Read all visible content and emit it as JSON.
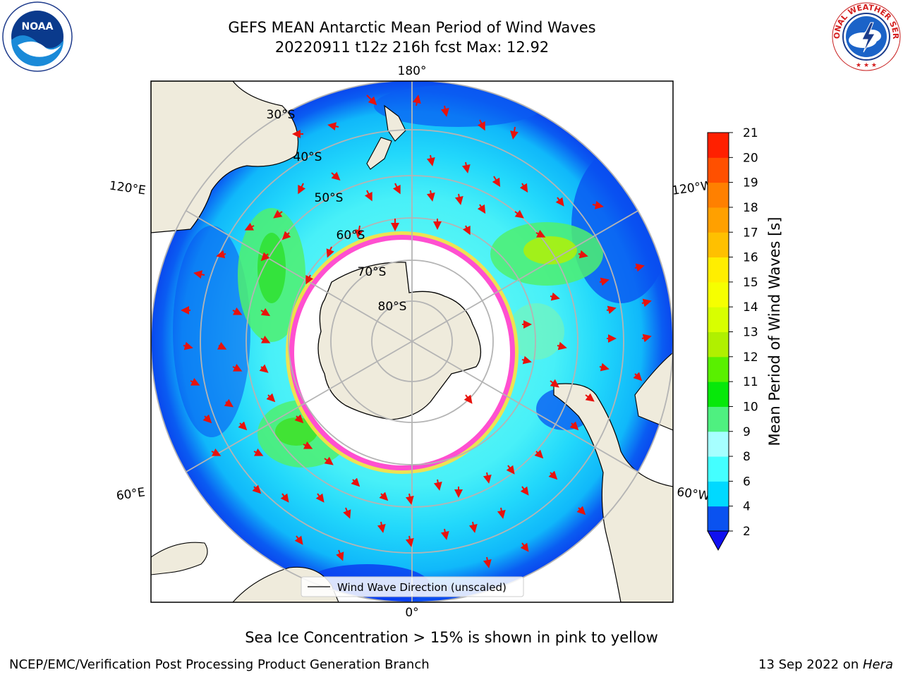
{
  "title": {
    "line1": "GEFS MEAN Antarctic Mean Period of Wind Waves",
    "line2": "20220911 t12z 216h fcst   Max: 12.92"
  },
  "map": {
    "projection": "south-polar-stereographic",
    "longitude_labels": {
      "top": "180°",
      "upper_left": "120°E",
      "upper_right": "120°W",
      "lower_left": "60°E",
      "lower_right": "60°W",
      "bottom": "0°"
    },
    "latitude_labels": [
      "30°S",
      "40°S",
      "50°S",
      "60°S",
      "70°S",
      "80°S"
    ],
    "legend_label": "Wind Wave Direction (unscaled)",
    "colors": {
      "land": "#efebdc",
      "ocean_low": "#0a52f0",
      "ocean_mid": "#31dcf7",
      "ocean_high": "#4ff060",
      "sea_ice": "#ff4fd0",
      "arrow": "#e8120c"
    }
  },
  "colorbar": {
    "label": "Mean Period of Wind Waves [s]",
    "ticks": [
      "2",
      "4",
      "6",
      "8",
      "9",
      "10",
      "11",
      "12",
      "13",
      "14",
      "15",
      "16",
      "17",
      "18",
      "19",
      "20",
      "21"
    ],
    "colors": [
      "#0a52f0",
      "#00d9ff",
      "#44ffff",
      "#a6ffff",
      "#4ff080",
      "#07e80a",
      "#59f000",
      "#b0f000",
      "#d8ff00",
      "#f6ff00",
      "#ffee00",
      "#ffc000",
      "#ffa000",
      "#ff8000",
      "#ff5000",
      "#ff2000"
    ],
    "under_color": "#1010f0"
  },
  "note": "Sea Ice Concentration > 15% is shown in pink to yellow",
  "footer": {
    "left": "NCEP/EMC/Verification Post Processing Product Generation Branch",
    "date": "13 Sep 2022 on ",
    "machine": "Hera"
  },
  "logos": {
    "left_text": "NOAA",
    "right_text": "NATIONAL WEATHER SERVICE"
  }
}
